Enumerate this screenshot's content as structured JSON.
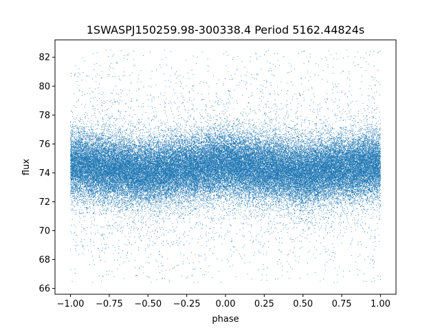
{
  "chart_data": {
    "type": "scatter",
    "title": "1SWASPJ150259.98-300338.4 Period 5162.44824s",
    "xlabel": "phase",
    "ylabel": "flux",
    "xlim": [
      -1.1,
      1.1
    ],
    "ylim": [
      65.6,
      83.2
    ],
    "x_ticks": [
      -1.0,
      -0.75,
      -0.5,
      -0.25,
      0.0,
      0.25,
      0.5,
      0.75,
      1.0
    ],
    "x_tick_labels": [
      "−1.00",
      "−0.75",
      "−0.50",
      "−0.25",
      "0.00",
      "0.25",
      "0.50",
      "0.75",
      "1.00"
    ],
    "y_ticks": [
      66,
      68,
      70,
      72,
      74,
      76,
      78,
      80,
      82
    ],
    "y_tick_labels": [
      "66",
      "68",
      "70",
      "72",
      "74",
      "76",
      "78",
      "80",
      "82"
    ],
    "grid": false,
    "legend": "none",
    "point_color": "#1f77b4",
    "series": [
      {
        "x_range": [
          -1.0,
          1.0
        ],
        "mean_flux_profile": {
          "phase": [
            -1.0,
            -0.75,
            -0.5,
            -0.25,
            0.0,
            0.25,
            0.5,
            0.75,
            1.0
          ],
          "flux": [
            74.6,
            74.3,
            74.0,
            74.3,
            74.6,
            74.3,
            74.0,
            74.3,
            74.6
          ]
        },
        "core_spread": 1.1,
        "outlier_range": [
          66.4,
          82.5
        ],
        "approx_points": 60000
      }
    ]
  }
}
